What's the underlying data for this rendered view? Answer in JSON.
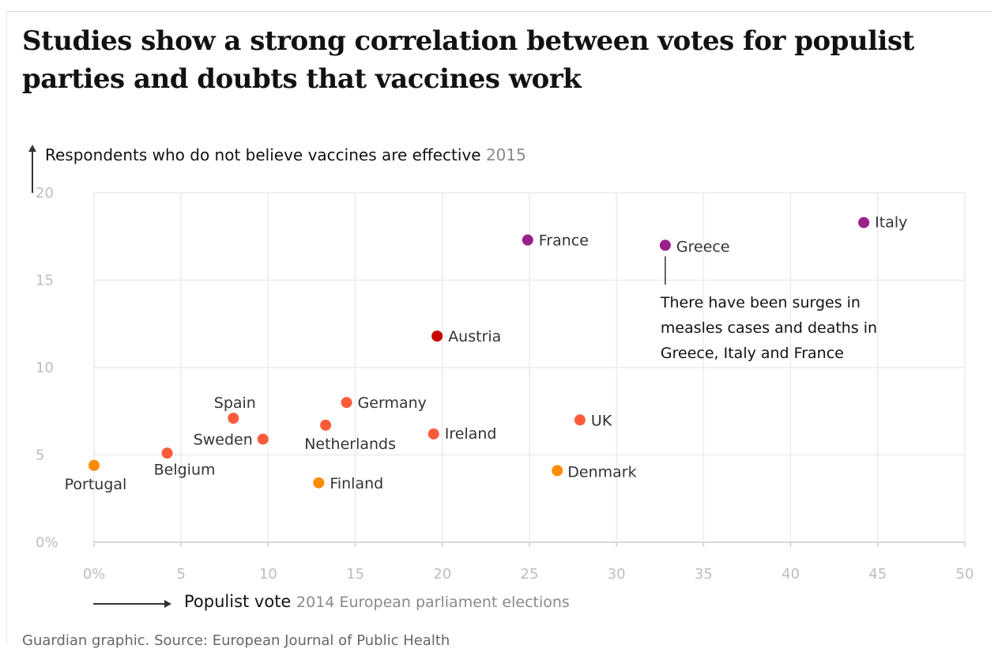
{
  "title": "Studies show a strong correlation between votes for populist parties and doubts that vaccines work",
  "source": "Guardian graphic. Source: European Journal of Public Health",
  "colors": {
    "purple": "#9b1e8a",
    "crimson": "#c70000",
    "red": "#ff5b3a",
    "orange": "#ff8b00",
    "grid": "#ececec",
    "tick": "#bdbdbd"
  },
  "chart_data": {
    "type": "scatter",
    "title": "Studies show a strong correlation between votes for populist parties and doubts that vaccines work",
    "ylabel": "Respondents who do not believe vaccines are effective",
    "ylabel_sub": "2015",
    "xlabel": "Populist vote",
    "xlabel_sub": "2014 European parliament elections",
    "xlim": [
      0,
      50
    ],
    "ylim": [
      0,
      20
    ],
    "x_ticks": [
      0,
      5,
      10,
      15,
      20,
      25,
      30,
      35,
      40,
      45,
      50
    ],
    "y_ticks": [
      0,
      5,
      10,
      15,
      20
    ],
    "x_tick_labels": [
      "0%",
      "5",
      "10",
      "15",
      "20",
      "25",
      "30",
      "35",
      "40",
      "45",
      "50"
    ],
    "y_tick_labels": [
      "0%",
      "5",
      "10",
      "15",
      "20"
    ],
    "grid": true,
    "points": [
      {
        "label": "Italy",
        "x": 44.2,
        "y": 18.3,
        "color": "purple"
      },
      {
        "label": "Greece",
        "x": 32.8,
        "y": 17.0,
        "color": "purple"
      },
      {
        "label": "France",
        "x": 24.9,
        "y": 17.3,
        "color": "purple"
      },
      {
        "label": "Austria",
        "x": 19.7,
        "y": 11.8,
        "color": "crimson"
      },
      {
        "label": "Germany",
        "x": 14.5,
        "y": 8.0,
        "color": "red"
      },
      {
        "label": "Netherlands",
        "x": 13.3,
        "y": 6.7,
        "color": "red"
      },
      {
        "label": "Spain",
        "x": 8.0,
        "y": 7.1,
        "color": "red"
      },
      {
        "label": "Sweden",
        "x": 9.7,
        "y": 5.9,
        "color": "red"
      },
      {
        "label": "Belgium",
        "x": 4.2,
        "y": 5.1,
        "color": "red"
      },
      {
        "label": "Portugal",
        "x": 0.0,
        "y": 4.4,
        "color": "orange"
      },
      {
        "label": "Finland",
        "x": 12.9,
        "y": 3.4,
        "color": "orange"
      },
      {
        "label": "Ireland",
        "x": 19.5,
        "y": 6.2,
        "color": "red"
      },
      {
        "label": "UK",
        "x": 27.9,
        "y": 7.0,
        "color": "red"
      },
      {
        "label": "Denmark",
        "x": 26.6,
        "y": 4.1,
        "color": "orange"
      }
    ],
    "annotation": {
      "target": "Greece",
      "lines": [
        "There have been surges in",
        "measles cases and deaths in",
        "Greece, Italy and France"
      ]
    }
  }
}
